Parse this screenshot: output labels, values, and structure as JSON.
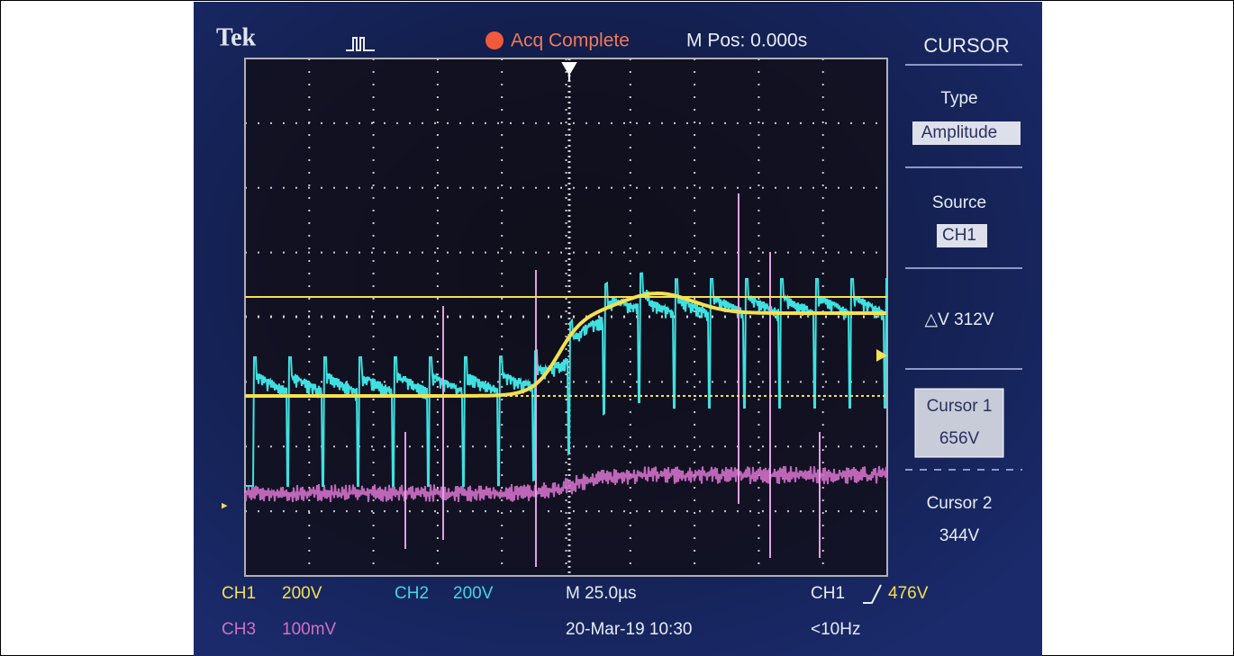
{
  "header": {
    "brand": "Tek",
    "status": "Acq Complete",
    "position": "M Pos: 0.000s"
  },
  "menu": {
    "title": "CURSOR",
    "items": [
      {
        "label": "Type",
        "value": "Amplitude"
      },
      {
        "label": "Source",
        "value": "CH1"
      },
      {
        "label": "△V 312V"
      },
      {
        "label": "Cursor 1",
        "value": "656V"
      },
      {
        "label": "Cursor 2",
        "value": "344V"
      }
    ]
  },
  "footer": {
    "ch1": "CH1",
    "ch1_scale": "200V",
    "ch2": "CH2",
    "ch2_scale": "200V",
    "timebase": "M 25.0µs",
    "trigger_source": "CH1",
    "trigger_level": "476V",
    "ch3": "CH3",
    "ch3_scale": "100mV",
    "timestamp": "20-Mar-19 10:30",
    "frequency": "<10Hz"
  }
}
